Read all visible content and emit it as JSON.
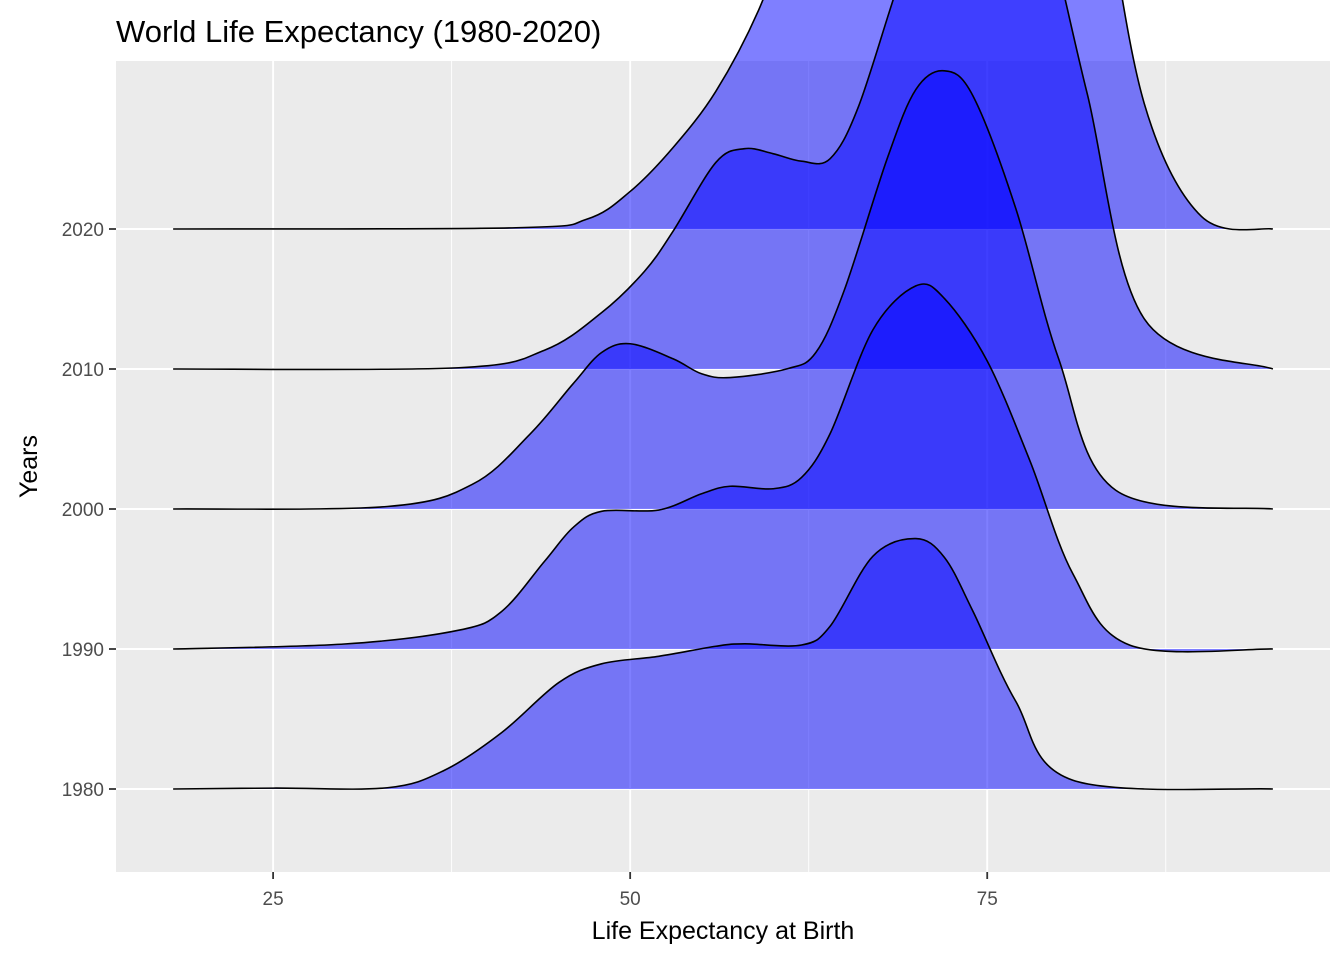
{
  "chart_data": {
    "type": "area",
    "subtype": "ridgeline-density",
    "title": "World Life Expectancy (1980-2020)",
    "xlabel": "Life Expectancy at Birth",
    "ylabel": "Years",
    "xlim": [
      14,
      99
    ],
    "x_ticks": [
      25,
      50,
      75
    ],
    "x_tick_labels": [
      "25",
      "50",
      "75"
    ],
    "x_minor_ticks": [
      37.5,
      62.5,
      87.5
    ],
    "categories": [
      "1980",
      "1990",
      "2000",
      "2010",
      "2020"
    ],
    "grid": true,
    "fill_color": "#0000FF",
    "fill_opacity": 0.5,
    "line_color": "#000000",
    "panel_background": "#EBEBEB",
    "grid_color": "#FFFFFF",
    "series": [
      {
        "category": "1980",
        "x": [
          18,
          25,
          33,
          37,
          41,
          45,
          48,
          52,
          56,
          58,
          62,
          64,
          67,
          70,
          72,
          74,
          77,
          81,
          95
        ],
        "density": [
          0,
          0.0007,
          0.001,
          0.015,
          0.045,
          0.085,
          0.1,
          0.106,
          0.114,
          0.116,
          0.115,
          0.13,
          0.186,
          0.2,
          0.185,
          0.142,
          0.07,
          0.007,
          0
        ]
      },
      {
        "category": "1990",
        "x": [
          18,
          30,
          38,
          41,
          44,
          46,
          48,
          52,
          55,
          57,
          60,
          62,
          64,
          67,
          70,
          72,
          75,
          78,
          81,
          85,
          95
        ],
        "density": [
          0,
          0.004,
          0.015,
          0.03,
          0.07,
          0.097,
          0.11,
          0.111,
          0.124,
          0.13,
          0.128,
          0.137,
          0.172,
          0.255,
          0.29,
          0.28,
          0.23,
          0.15,
          0.06,
          0.003,
          0
        ]
      },
      {
        "category": "2000",
        "x": [
          18,
          33,
          39,
          43,
          46,
          48,
          50,
          53,
          55,
          57,
          61,
          63,
          65,
          68,
          70,
          72,
          74,
          77,
          80,
          84,
          95
        ],
        "density": [
          0,
          0.002,
          0.02,
          0.06,
          0.1,
          0.125,
          0.132,
          0.12,
          0.108,
          0.105,
          0.112,
          0.125,
          0.175,
          0.28,
          0.335,
          0.35,
          0.33,
          0.24,
          0.12,
          0.015,
          0
        ]
      },
      {
        "category": "2010",
        "x": [
          18,
          38,
          44,
          48,
          51,
          53,
          56,
          58,
          60,
          62,
          64,
          66,
          69,
          72,
          74,
          76,
          79,
          82,
          86,
          95
        ],
        "density": [
          0,
          0.001,
          0.015,
          0.045,
          0.078,
          0.11,
          0.165,
          0.176,
          0.172,
          0.166,
          0.168,
          0.21,
          0.315,
          0.405,
          0.44,
          0.44,
          0.36,
          0.22,
          0.04,
          0
        ]
      },
      {
        "category": "2020",
        "x": [
          18,
          42,
          47,
          50,
          53,
          56,
          59,
          62,
          64,
          66,
          68,
          71,
          74,
          76,
          78,
          80,
          83,
          86,
          90,
          95
        ],
        "density": [
          0,
          0.001,
          0.008,
          0.03,
          0.065,
          0.11,
          0.175,
          0.265,
          0.305,
          0.32,
          0.35,
          0.45,
          0.54,
          0.56,
          0.53,
          0.45,
          0.28,
          0.1,
          0.01,
          0
        ]
      }
    ]
  }
}
